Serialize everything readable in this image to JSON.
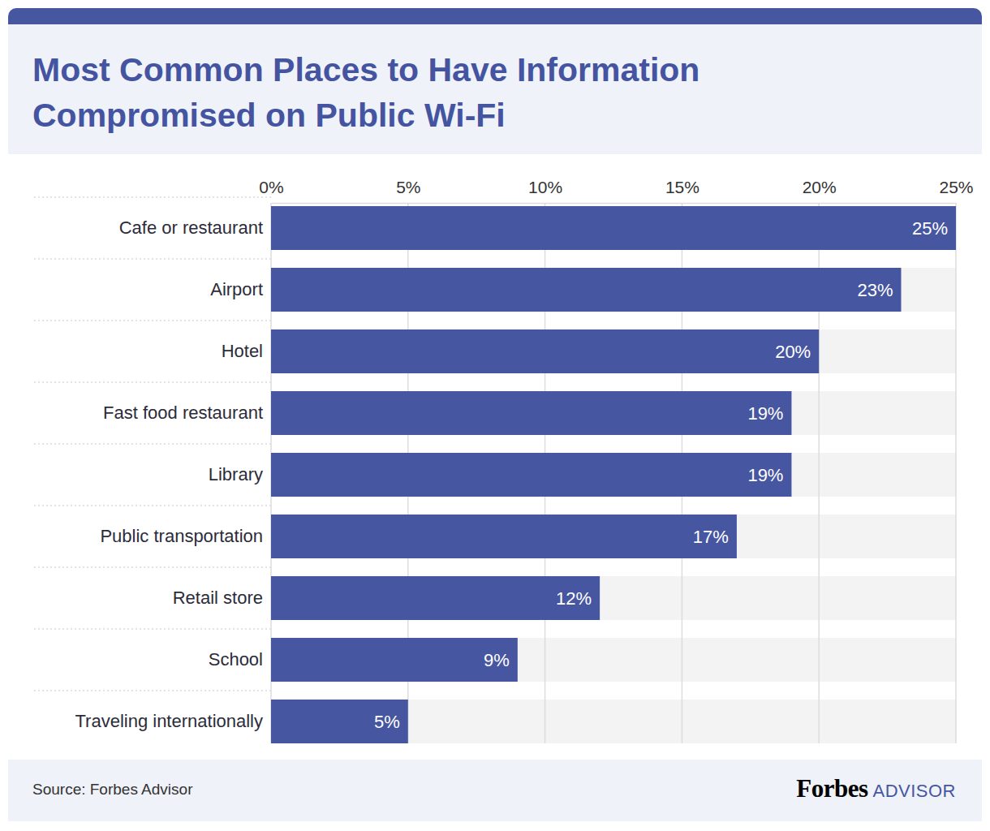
{
  "chart_data": {
    "type": "bar",
    "orientation": "horizontal",
    "title": "Most Common Places to Have Information Compromised on Public Wi-Fi",
    "source": "Source: Forbes Advisor",
    "annotations": [
      "Forbes",
      "ADVISOR"
    ],
    "categories": [
      "Cafe or restaurant",
      "Airport",
      "Hotel",
      "Fast food restaurant",
      "Library",
      "Public transportation",
      "Retail store",
      "School",
      "Traveling internationally"
    ],
    "values": [
      25,
      23,
      20,
      19,
      19,
      17,
      12,
      9,
      5
    ],
    "value_labels": [
      "25%",
      "23%",
      "20%",
      "19%",
      "19%",
      "17%",
      "12%",
      "9%",
      "5%"
    ],
    "color": "#4756a1",
    "xlim": [
      0,
      25
    ],
    "xticks": [
      {
        "value": 0,
        "label": "0%"
      },
      {
        "value": 5,
        "label": "5%"
      },
      {
        "value": 10,
        "label": "10%"
      },
      {
        "value": 15,
        "label": "15%"
      },
      {
        "value": 20,
        "label": "20%"
      },
      {
        "value": 25,
        "label": "25%"
      }
    ],
    "grid": true,
    "data_labels": true
  }
}
